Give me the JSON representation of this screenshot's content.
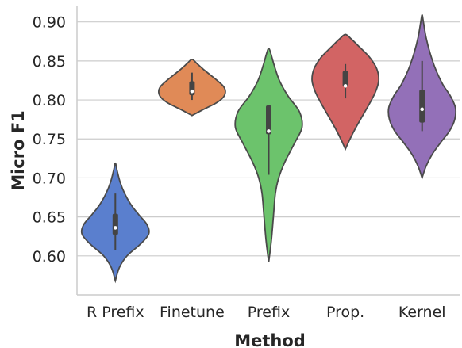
{
  "chart_data": {
    "type": "violin",
    "xlabel": "Method",
    "ylabel": "Micro F1",
    "ylim": [
      0.55,
      0.92
    ],
    "yticks": [
      "0.60",
      "0.65",
      "0.70",
      "0.75",
      "0.80",
      "0.85",
      "0.90"
    ],
    "ytick_values": [
      0.6,
      0.65,
      0.7,
      0.75,
      0.8,
      0.85,
      0.9
    ],
    "grid": "horizontal",
    "categories": [
      "R Prefix",
      "Finetune",
      "Prefix",
      "Prop.",
      "Kernel"
    ],
    "series": [
      {
        "category": "R Prefix",
        "color": "#5a7fce",
        "min": 0.568,
        "max": 0.719,
        "whisker_low": 0.608,
        "whisker_high": 0.68,
        "q1": 0.627,
        "median": 0.636,
        "q3": 0.654,
        "density": [
          [
            0.568,
            0.0
          ],
          [
            0.585,
            0.12
          ],
          [
            0.6,
            0.35
          ],
          [
            0.615,
            0.75
          ],
          [
            0.628,
            1.0
          ],
          [
            0.64,
            0.95
          ],
          [
            0.652,
            0.72
          ],
          [
            0.665,
            0.48
          ],
          [
            0.68,
            0.28
          ],
          [
            0.695,
            0.14
          ],
          [
            0.71,
            0.05
          ],
          [
            0.719,
            0.0
          ]
        ]
      },
      {
        "category": "Finetune",
        "color": "#e08a57",
        "min": 0.78,
        "max": 0.852,
        "whisker_low": 0.8,
        "whisker_high": 0.835,
        "q1": 0.806,
        "median": 0.811,
        "q3": 0.824,
        "density": [
          [
            0.78,
            0.0
          ],
          [
            0.788,
            0.35
          ],
          [
            0.796,
            0.72
          ],
          [
            0.803,
            0.93
          ],
          [
            0.81,
            1.0
          ],
          [
            0.817,
            0.95
          ],
          [
            0.824,
            0.78
          ],
          [
            0.832,
            0.55
          ],
          [
            0.84,
            0.32
          ],
          [
            0.847,
            0.14
          ],
          [
            0.852,
            0.0
          ]
        ]
      },
      {
        "category": "Prefix",
        "color": "#6cc36c",
        "min": 0.592,
        "max": 0.866,
        "whisker_low": 0.704,
        "whisker_high": 0.793,
        "q1": 0.756,
        "median": 0.76,
        "q3": 0.793,
        "density": [
          [
            0.592,
            0.0
          ],
          [
            0.62,
            0.08
          ],
          [
            0.65,
            0.14
          ],
          [
            0.68,
            0.2
          ],
          [
            0.7,
            0.3
          ],
          [
            0.72,
            0.48
          ],
          [
            0.745,
            0.78
          ],
          [
            0.765,
            1.0
          ],
          [
            0.785,
            0.92
          ],
          [
            0.805,
            0.58
          ],
          [
            0.825,
            0.32
          ],
          [
            0.845,
            0.16
          ],
          [
            0.86,
            0.06
          ],
          [
            0.866,
            0.0
          ]
        ]
      },
      {
        "category": "Prop.",
        "color": "#d26464",
        "min": 0.737,
        "max": 0.884,
        "whisker_low": 0.802,
        "whisker_high": 0.846,
        "q1": 0.817,
        "median": 0.818,
        "q3": 0.837,
        "density": [
          [
            0.737,
            0.0
          ],
          [
            0.75,
            0.14
          ],
          [
            0.765,
            0.32
          ],
          [
            0.78,
            0.52
          ],
          [
            0.795,
            0.72
          ],
          [
            0.81,
            0.9
          ],
          [
            0.825,
            1.0
          ],
          [
            0.84,
            0.94
          ],
          [
            0.855,
            0.72
          ],
          [
            0.868,
            0.42
          ],
          [
            0.878,
            0.18
          ],
          [
            0.884,
            0.0
          ]
        ]
      },
      {
        "category": "Kernel",
        "color": "#9370b8",
        "min": 0.7,
        "max": 0.909,
        "whisker_low": 0.76,
        "whisker_high": 0.85,
        "q1": 0.771,
        "median": 0.788,
        "q3": 0.813,
        "density": [
          [
            0.7,
            0.0
          ],
          [
            0.715,
            0.12
          ],
          [
            0.73,
            0.3
          ],
          [
            0.745,
            0.55
          ],
          [
            0.76,
            0.82
          ],
          [
            0.775,
            0.98
          ],
          [
            0.79,
            1.0
          ],
          [
            0.805,
            0.85
          ],
          [
            0.82,
            0.62
          ],
          [
            0.84,
            0.4
          ],
          [
            0.86,
            0.24
          ],
          [
            0.88,
            0.12
          ],
          [
            0.9,
            0.04
          ],
          [
            0.909,
            0.0
          ]
        ]
      }
    ]
  }
}
